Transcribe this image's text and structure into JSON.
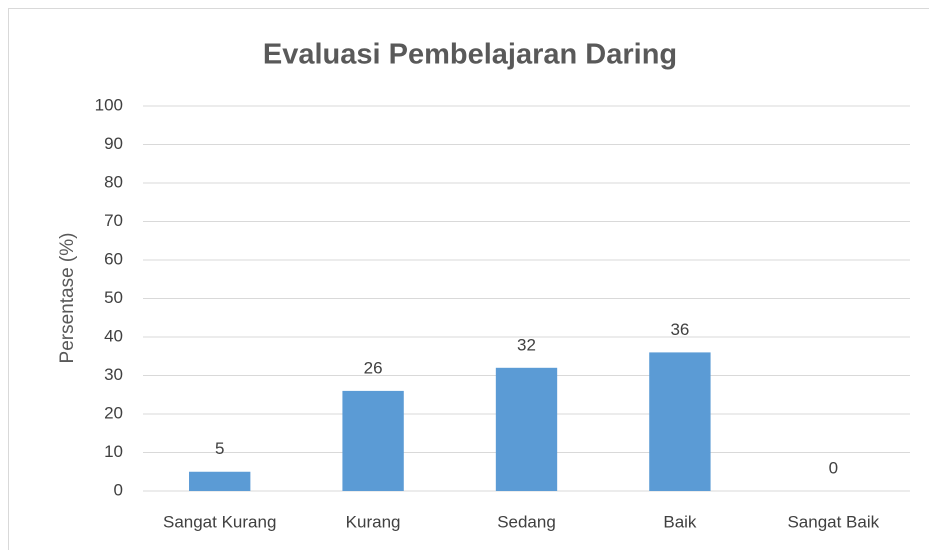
{
  "chart_data": {
    "type": "bar",
    "title": "Evaluasi Pembelajaran Daring",
    "y_label": "Persentase (%)",
    "categories": [
      "Sangat Kurang",
      "Kurang",
      "Sedang",
      "Baik",
      "Sangat Baik"
    ],
    "values": [
      5,
      26,
      32,
      36,
      0
    ],
    "color": "#5b9bd5",
    "ylim": [
      0,
      100
    ],
    "yticks": [
      0,
      10,
      20,
      30,
      40,
      50,
      60,
      70,
      80,
      90,
      100
    ],
    "grid": true,
    "data_labels": true
  }
}
